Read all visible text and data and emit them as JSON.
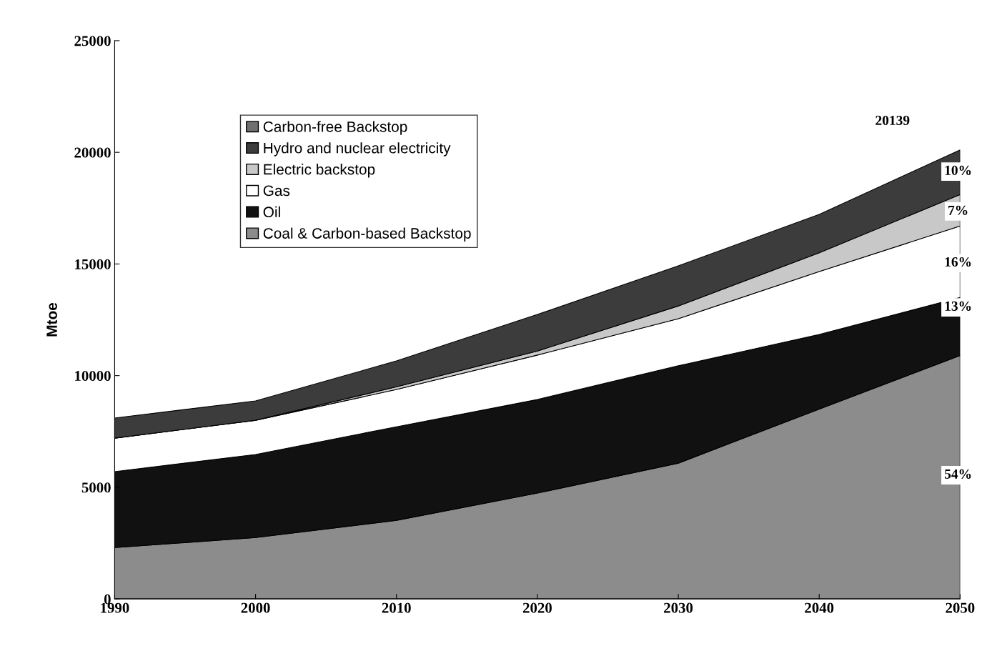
{
  "chart_data": {
    "type": "area",
    "stacked": true,
    "ylabel": "Mtoe",
    "x": [
      1990,
      2000,
      2010,
      2020,
      2030,
      2040,
      2050
    ],
    "xlim": [
      1990,
      2050
    ],
    "xticks": [
      1990,
      2000,
      2010,
      2020,
      2030,
      2040,
      2050
    ],
    "ylim": [
      0,
      25000
    ],
    "yticks": [
      0,
      5000,
      10000,
      15000,
      20000,
      25000
    ],
    "grid": false,
    "legend": "top left",
    "series": [
      {
        "name": "Coal & Carbon-based Backstop",
        "color": "#8c8c8c",
        "values": [
          2300,
          2750,
          3520,
          4740,
          6080,
          8500,
          10900
        ]
      },
      {
        "name": "Oil",
        "color": "#111111",
        "values": [
          3400,
          3720,
          4190,
          4190,
          4360,
          3340,
          2600
        ]
      },
      {
        "name": "Gas",
        "color": "#ffffff",
        "values": [
          1500,
          1530,
          1670,
          1990,
          2110,
          2820,
          3200
        ]
      },
      {
        "name": "Electric backstop",
        "color": "#c8c8c8",
        "values": [
          0,
          0,
          120,
          180,
          570,
          840,
          1410
        ]
      },
      {
        "name": "Hydro and nuclear electricity",
        "color": "#3c3c3c",
        "values": [
          900,
          870,
          1160,
          1640,
          1800,
          1720,
          2000
        ]
      },
      {
        "name": "Carbon-free Backstop",
        "color": "#707070",
        "values": [
          null,
          null,
          null,
          null,
          null,
          null,
          null
        ]
      }
    ],
    "annotations": [
      "20139",
      {
        "text": "10%",
        "y": 19140
      },
      {
        "text": "7%",
        "y": 17350
      },
      {
        "text": "16%",
        "y": 15040
      },
      {
        "text": "13%",
        "y": 13060
      },
      {
        "text": "54%",
        "y": 5540
      }
    ]
  }
}
